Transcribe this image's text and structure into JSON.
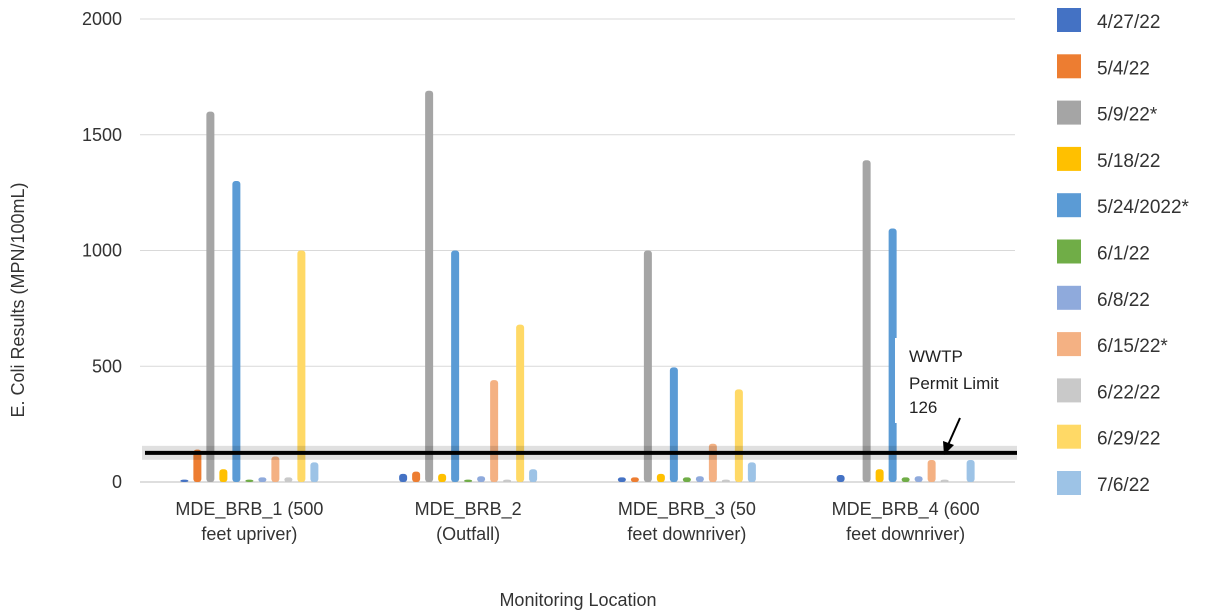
{
  "chart_data": {
    "type": "bar",
    "title": "",
    "xlabel": "Monitoring Location",
    "ylabel": "E. Coli Results (MPN/100mL)",
    "ylim": [
      0,
      2000
    ],
    "yticks": [
      0,
      500,
      1000,
      1500,
      2000
    ],
    "grid": true,
    "legend_position": "right",
    "categories": [
      [
        "MDE_BRB_1 (500",
        "feet upriver)"
      ],
      [
        "MDE_BRB_2",
        "(Outfall)"
      ],
      [
        "MDE_BRB_3 (50",
        "feet downriver)"
      ],
      [
        "MDE_BRB_4 (600",
        "feet downriver)"
      ]
    ],
    "series": [
      {
        "name": "4/27/22",
        "color": "#4472C4",
        "values": [
          10,
          35,
          20,
          30
        ]
      },
      {
        "name": "5/4/22",
        "color": "#ED7D31",
        "values": [
          140,
          45,
          20,
          0
        ]
      },
      {
        "name": "5/9/22*",
        "color": "#A5A5A5",
        "values": [
          1600,
          1690,
          1000,
          1390
        ]
      },
      {
        "name": "5/18/22",
        "color": "#FFC000",
        "values": [
          55,
          35,
          35,
          55
        ]
      },
      {
        "name": "5/24/2022*",
        "color": "#5B9BD5",
        "values": [
          1300,
          1000,
          495,
          1095
        ]
      },
      {
        "name": "6/1/22",
        "color": "#70AD47",
        "values": [
          10,
          10,
          20,
          20
        ]
      },
      {
        "name": "6/8/22",
        "color": "#8FAADC",
        "values": [
          20,
          25,
          25,
          25
        ]
      },
      {
        "name": "6/15/22*",
        "color": "#F4B183",
        "values": [
          110,
          440,
          165,
          95
        ]
      },
      {
        "name": "6/22/22",
        "color": "#C9C9C9",
        "values": [
          20,
          10,
          10,
          10
        ]
      },
      {
        "name": "6/29/22",
        "color": "#FFD966",
        "values": [
          1000,
          680,
          400,
          0
        ]
      },
      {
        "name": "7/6/22",
        "color": "#9DC3E6",
        "values": [
          85,
          55,
          85,
          95
        ]
      }
    ],
    "reference_line": {
      "value": 126,
      "label_lines": [
        "WWTP",
        "Permit Limit",
        "126"
      ]
    }
  }
}
